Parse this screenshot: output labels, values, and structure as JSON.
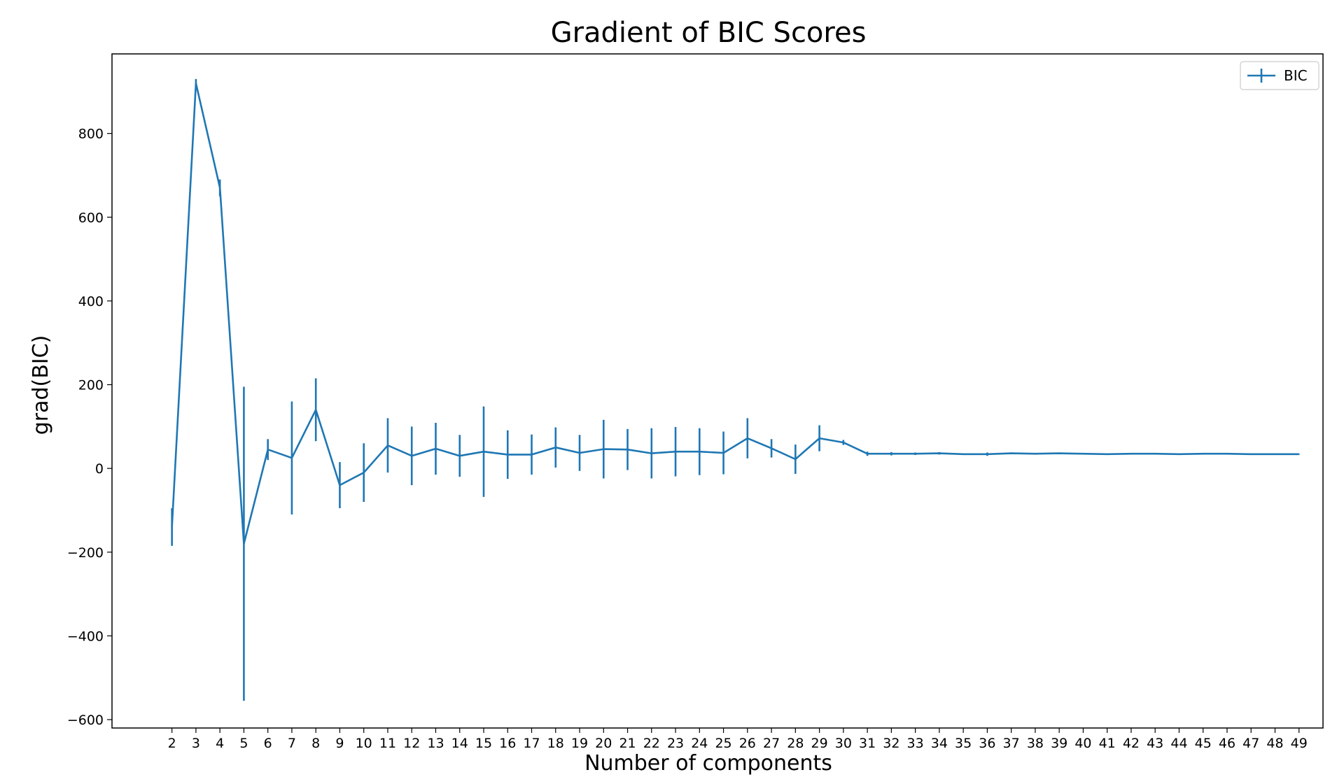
{
  "chart_data": {
    "type": "line",
    "title": "Gradient of BIC Scores",
    "xlabel": "Number of components",
    "ylabel": "grad(BIC)",
    "xlim": [
      -0.5,
      50.0
    ],
    "ylim": [
      -620,
      990
    ],
    "x_ticks": [
      2,
      3,
      4,
      5,
      6,
      7,
      8,
      9,
      10,
      11,
      12,
      13,
      14,
      15,
      16,
      17,
      18,
      19,
      20,
      21,
      22,
      23,
      24,
      25,
      26,
      27,
      28,
      29,
      30,
      31,
      32,
      33,
      34,
      35,
      36,
      37,
      38,
      39,
      40,
      41,
      42,
      43,
      44,
      45,
      46,
      47,
      48,
      49
    ],
    "y_ticks": [
      -600,
      -400,
      -200,
      0,
      200,
      400,
      600,
      800
    ],
    "y_tick_labels": [
      "−600",
      "−400",
      "−200",
      "0",
      "200",
      "400",
      "600",
      "800"
    ],
    "grid": false,
    "legend_position": "upper right",
    "series": [
      {
        "name": "BIC",
        "color": "#1f77b4",
        "x": [
          2,
          3,
          4,
          5,
          6,
          7,
          8,
          9,
          10,
          11,
          12,
          13,
          14,
          15,
          16,
          17,
          18,
          19,
          20,
          21,
          22,
          23,
          24,
          25,
          26,
          27,
          28,
          29,
          30,
          31,
          32,
          33,
          34,
          35,
          36,
          37,
          38,
          39,
          40,
          41,
          42,
          43,
          44,
          45,
          46,
          47,
          48,
          49
        ],
        "y": [
          -140,
          920,
          670,
          -180,
          45,
          25,
          140,
          -40,
          -10,
          55,
          30,
          47,
          30,
          40,
          33,
          33,
          50,
          37,
          46,
          45,
          36,
          40,
          40,
          37,
          72,
          48,
          22,
          72,
          62,
          35,
          35,
          35,
          36,
          34,
          34,
          36,
          35,
          36,
          35,
          34,
          35,
          35,
          34,
          35,
          35,
          34,
          34,
          34
        ],
        "err": [
          45,
          10,
          20,
          375,
          25,
          135,
          75,
          55,
          70,
          65,
          70,
          62,
          50,
          108,
          58,
          48,
          48,
          43,
          70,
          49,
          60,
          59,
          56,
          51,
          48,
          22,
          35,
          31,
          6,
          5,
          4,
          3,
          3,
          2,
          4,
          2,
          1,
          1,
          1,
          1,
          1,
          1,
          1,
          1,
          1,
          1,
          1,
          1
        ]
      }
    ]
  }
}
